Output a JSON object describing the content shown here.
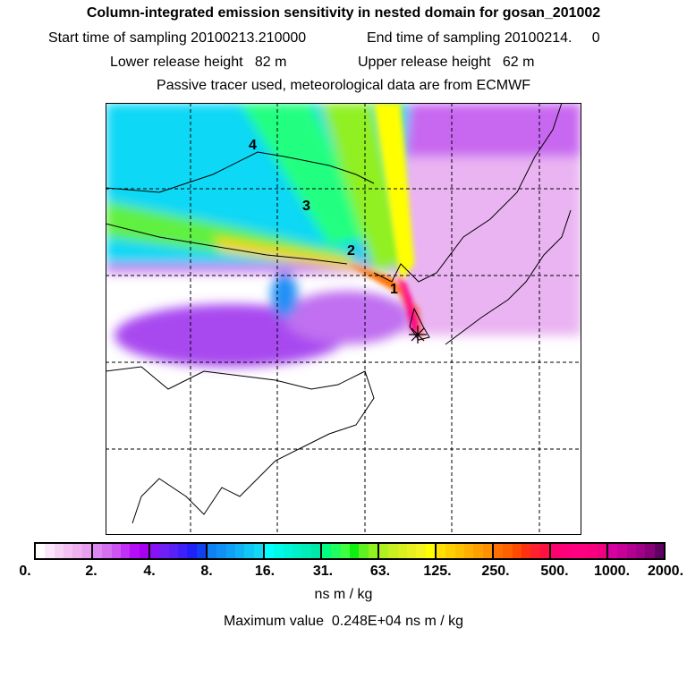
{
  "title": "Column-integrated emission sensitivity in nested domain for gosan_201002",
  "sampling_start": "Start time of sampling 20100213.210000",
  "sampling_end": "End time of sampling 20100214.     0",
  "lower_release": "Lower release height   82 m",
  "upper_release": "Upper release height   62 m",
  "tracer_info": "Passive tracer used, meteorological data are from ECMWF",
  "map_labels": [
    "1",
    "2",
    "3",
    "4"
  ],
  "colorbar": {
    "labels": [
      "0.",
      "2.",
      "4.",
      "8.",
      "16.",
      "31.",
      "63.",
      "125.",
      "250.",
      "500.",
      "1000.",
      "2000."
    ],
    "colors": [
      [
        "#ffffff",
        "#fbe6fb",
        "#f6d2f6",
        "#f2c0f2",
        "#eeb0f0",
        "#e8a0ee"
      ],
      [
        "#dd88f0",
        "#d570f0",
        "#cc55f2",
        "#c030f5",
        "#b510f5",
        "#a800f0"
      ],
      [
        "#8a10f5",
        "#7020f5",
        "#5a20f5",
        "#4020f8",
        "#2020f8",
        "#1040f0"
      ],
      [
        "#1080f5",
        "#1090f5",
        "#10a0f5",
        "#10b4f5",
        "#10c8f5",
        "#10d8f5"
      ],
      [
        "#00ffff",
        "#00fae8",
        "#00f5d8",
        "#00f0c8",
        "#00ecb8",
        "#00e8a8"
      ],
      [
        "#00ff80",
        "#20ff60",
        "#40ff40",
        "#10f010",
        "#60f020",
        "#90f020"
      ],
      [
        "#b0f020",
        "#c8f020",
        "#d8f020",
        "#e8f020",
        "#f4f420",
        "#ffff00"
      ],
      [
        "#ffe000",
        "#ffd000",
        "#ffc000",
        "#ffb000",
        "#ffa000",
        "#ff9000"
      ],
      [
        "#ff7000",
        "#ff6000",
        "#ff4a00",
        "#ff3010",
        "#ff2030",
        "#ff1040"
      ],
      [
        "#ff0070",
        "#ff0078",
        "#ff0080",
        "#ff0080",
        "#f80080",
        "#f00080"
      ],
      [
        "#d800a0",
        "#c80098",
        "#b40090",
        "#a00088",
        "#880078",
        "#600060"
      ]
    ],
    "units": "ns m / kg",
    "max_value": "Maximum value  0.248E+04 ns m / kg"
  }
}
